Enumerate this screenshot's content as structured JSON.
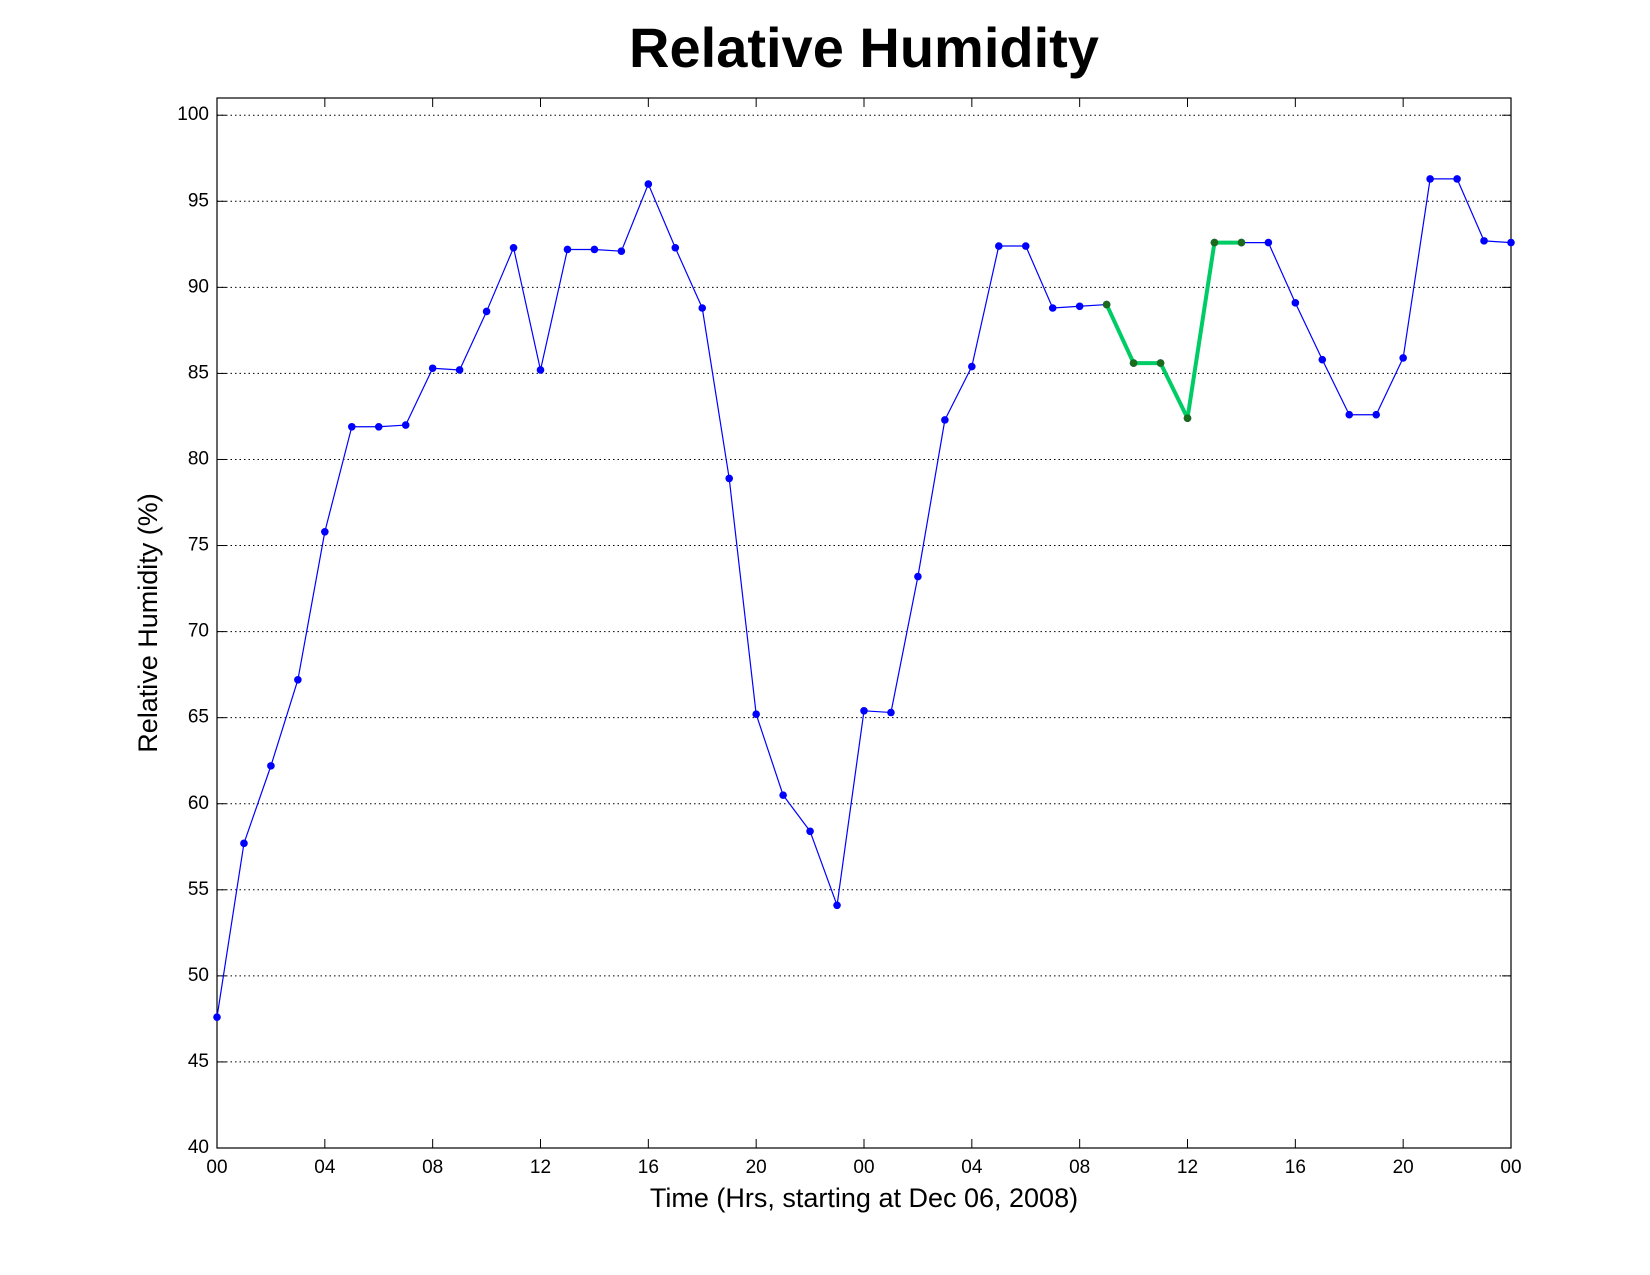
{
  "chart_data": {
    "type": "line",
    "title": "Relative Humidity",
    "x_label": "Time (Hrs, starting at Dec 06, 2008)",
    "y_label": "Relative Humidity (%)",
    "x": [
      0,
      1,
      2,
      3,
      4,
      5,
      6,
      7,
      8,
      9,
      10,
      11,
      12,
      13,
      14,
      15,
      16,
      17,
      18,
      19,
      20,
      21,
      22,
      23,
      24,
      25,
      26,
      27,
      28,
      29,
      30,
      31,
      32,
      33,
      34,
      35,
      36,
      37,
      38,
      39,
      40,
      41,
      42,
      43,
      44,
      45,
      46,
      47,
      48
    ],
    "series": [
      {
        "color": "#0000ff",
        "marker_color": "#0000ff",
        "line_width": 1.2,
        "values": [
          47.6,
          57.7,
          62.2,
          67.2,
          75.8,
          81.9,
          81.9,
          82.0,
          85.3,
          85.2,
          88.6,
          92.3,
          85.2,
          92.2,
          92.2,
          92.1,
          96.0,
          92.3,
          88.8,
          78.9,
          65.2,
          60.5,
          58.4,
          54.1,
          65.4,
          65.3,
          73.2,
          82.3,
          85.4,
          92.4,
          92.4,
          88.8,
          88.9,
          89.0,
          85.6,
          85.6,
          82.4,
          92.6,
          92.6,
          92.6,
          89.1,
          85.8,
          82.6,
          82.6,
          85.9,
          96.3,
          96.3,
          92.7,
          92.6
        ]
      },
      {
        "color": "#00cc66",
        "marker_color": "#1a6b1a",
        "line_width": 4,
        "values": [
          null,
          null,
          null,
          null,
          null,
          null,
          null,
          null,
          null,
          null,
          null,
          null,
          null,
          null,
          null,
          null,
          null,
          null,
          null,
          null,
          null,
          null,
          null,
          null,
          null,
          null,
          null,
          null,
          null,
          null,
          null,
          null,
          null,
          89.0,
          85.6,
          85.6,
          82.4,
          92.6,
          92.6,
          null,
          null,
          null,
          null,
          null,
          null,
          null,
          null,
          null,
          null
        ]
      }
    ],
    "xlim": [
      0,
      48
    ],
    "xticks": [
      {
        "value": 0,
        "label": "00"
      },
      {
        "value": 4,
        "label": "04"
      },
      {
        "value": 8,
        "label": "08"
      },
      12,
      16,
      20,
      {
        "value": 24,
        "label": "00"
      },
      {
        "value": 28,
        "label": "04"
      },
      {
        "value": 32,
        "label": "08"
      },
      {
        "value": 36,
        "label": "12"
      },
      {
        "value": 40,
        "label": "16"
      },
      {
        "value": 44,
        "label": "20"
      },
      {
        "value": 48,
        "label": "00"
      }
    ],
    "ylim": [
      40,
      101
    ],
    "yticks": [
      40,
      45,
      50,
      55,
      60,
      65,
      70,
      75,
      80,
      85,
      90,
      95,
      100
    ],
    "grid": "y"
  }
}
